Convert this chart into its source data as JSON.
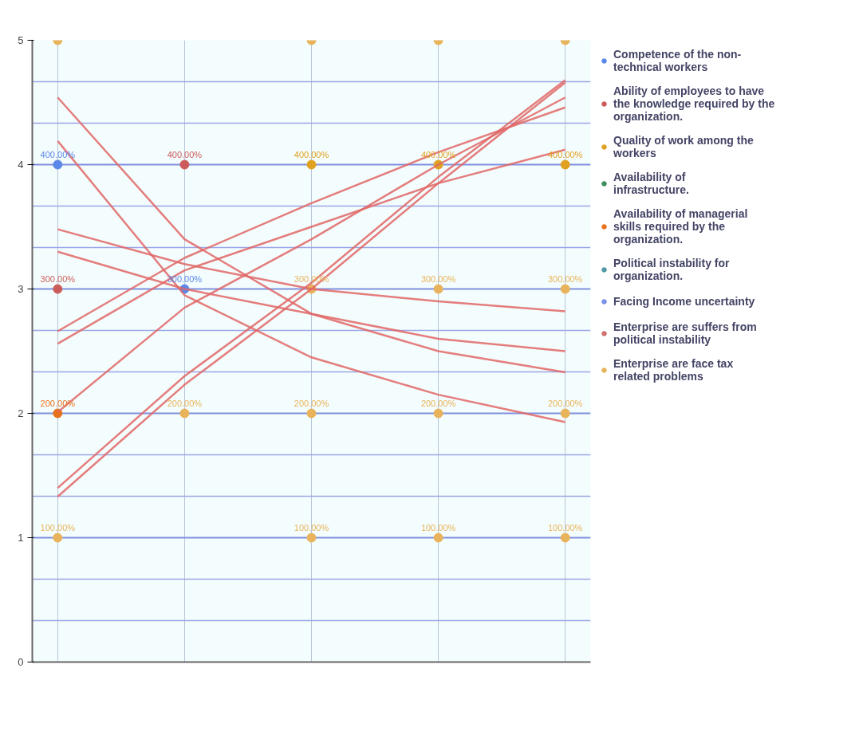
{
  "chart_data": {
    "type": "scatter",
    "categories": [
      null,
      null,
      null,
      null,
      null
    ],
    "ylim": [
      0,
      5
    ],
    "yticks": [
      0,
      {
        "value": 0.333,
        "label": null
      },
      {
        "value": 0.667,
        "label": null
      },
      1,
      {
        "value": 1.333,
        "label": null
      },
      {
        "value": 1.667,
        "label": null
      },
      2,
      {
        "value": 2.333,
        "label": null
      },
      {
        "value": 2.667,
        "label": null
      },
      3,
      {
        "value": 3.333,
        "label": null
      },
      {
        "value": 3.667,
        "label": null
      },
      4,
      {
        "value": 4.333,
        "label": null
      },
      {
        "value": 4.667,
        "label": null
      },
      5
    ],
    "tick_labels": "y",
    "grid": true,
    "legend": "right",
    "series": [
      {
        "name": "Competence of the non-technical workers",
        "color": "#5b87e8",
        "marker": "circle",
        "values": [
          4,
          3,
          null,
          null,
          null
        ],
        "value_labels": [
          "400.00%",
          "300.00%",
          null,
          null,
          null
        ]
      },
      {
        "name": "Ability of employees to have the knowledge required by the organization.",
        "color": "#cc5b5b",
        "marker": "circle",
        "values": [
          3,
          4,
          null,
          null,
          null
        ],
        "value_labels": [
          "300.00%",
          "400.00%",
          null,
          null,
          null
        ]
      },
      {
        "name": "Quality of work among the workers",
        "color": "#e0a020",
        "marker": "circle",
        "values": [
          null,
          null,
          4,
          4,
          4
        ],
        "value_labels": [
          null,
          null,
          "400.00%",
          "400.00%",
          "400.00%"
        ]
      },
      {
        "name": "Availability of infrastructure.",
        "color": "#3e8e5e",
        "marker": "circle",
        "values": [
          null,
          null,
          null,
          null,
          null
        ]
      },
      {
        "name": "Availability of managerial skills required by the organization.",
        "color": "#e8711c",
        "marker": "circle",
        "values": [
          2,
          null,
          null,
          null,
          null
        ],
        "value_labels": [
          "200.00%",
          null,
          null,
          null,
          null
        ]
      },
      {
        "name": "Political instability for organization.",
        "color": "#4f9aa5",
        "marker": "circle",
        "values": [
          null,
          null,
          null,
          null,
          null
        ]
      },
      {
        "name": "Facing Income uncertainty",
        "color": "#7a93e6",
        "marker": "circle",
        "values": [
          null,
          null,
          null,
          null,
          null
        ]
      },
      {
        "name": "Enterprise are suffers from political instability",
        "color": "#d07070",
        "marker": "circle",
        "values": [
          null,
          null,
          null,
          null,
          null
        ]
      },
      {
        "name": "Enterprise are face tax related problems",
        "color": "#e8b35a",
        "marker": "circle",
        "values": [
          1,
          2,
          1,
          1,
          1
        ],
        "value_labels": [
          "100.00%",
          "200.00%",
          "100.00%",
          "100.00%",
          "100.00%"
        ]
      },
      {
        "color": "#e8b35a",
        "marker": "circle",
        "values": [
          5,
          null,
          5,
          5,
          5
        ]
      },
      {
        "color": "#e8b35a",
        "marker": "circle",
        "values": [
          null,
          null,
          3,
          3,
          3
        ],
        "value_labels": [
          null,
          null,
          "300.00%",
          "300.00%",
          "300.00%"
        ]
      },
      {
        "color": "#e8b35a",
        "marker": "circle",
        "values": [
          null,
          null,
          2,
          2,
          2
        ],
        "value_labels": [
          null,
          null,
          "200.00%",
          "200.00%",
          "200.00%"
        ]
      },
      {
        "type": "line",
        "color": "#e06666",
        "values": [
          2.66,
          3.25,
          3.69,
          4.1,
          4.46
        ]
      },
      {
        "type": "line",
        "color": "#e06666",
        "values": [
          2.56,
          3.15,
          3.5,
          3.85,
          4.12
        ]
      },
      {
        "type": "line",
        "color": "#e06666",
        "values": [
          2.01,
          2.85,
          3.4,
          4.0,
          4.54
        ]
      },
      {
        "type": "line",
        "color": "#e06666",
        "values": [
          1.4,
          2.3,
          3.05,
          3.9,
          4.68
        ]
      },
      {
        "type": "line",
        "color": "#e06666",
        "values": [
          1.33,
          2.23,
          3.0,
          3.85,
          4.66
        ]
      },
      {
        "type": "line",
        "color": "#e06666",
        "values": [
          4.54,
          3.4,
          2.8,
          2.5,
          2.33
        ]
      },
      {
        "type": "line",
        "color": "#e06666",
        "values": [
          4.19,
          2.95,
          2.45,
          2.15,
          1.93
        ]
      },
      {
        "type": "line",
        "color": "#e06666",
        "values": [
          3.48,
          3.2,
          3.0,
          2.9,
          2.82
        ]
      },
      {
        "type": "line",
        "color": "#e06666",
        "values": [
          3.3,
          3.0,
          2.8,
          2.6,
          2.5
        ]
      }
    ]
  }
}
